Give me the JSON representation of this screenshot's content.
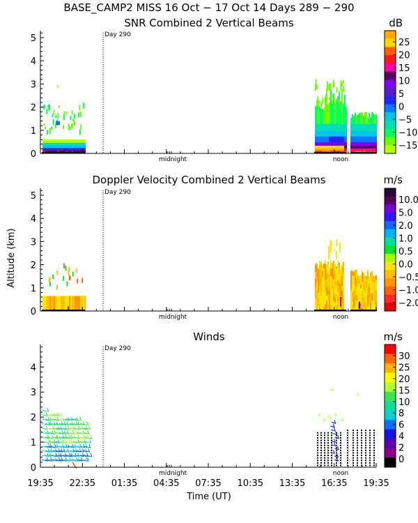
{
  "figure": {
    "title": "BASE_CAMP2 MISS  16 Oct − 17 Oct 14 Days 289 − 290",
    "ylabel": "Altitude (km)",
    "xlabel": "Time (UT)",
    "x_ticks": [
      "19:35",
      "22:35",
      "01:35",
      "04:35",
      "07:35",
      "10:35",
      "13:35",
      "16:35",
      "19:35"
    ],
    "day_marker": "Day 290",
    "midnight_label": "midnight",
    "noon_label": "noon"
  },
  "chart_data": [
    {
      "type": "heatmap",
      "title": "SNR Combined 2 Vertical Beams",
      "units": "dB",
      "ylim": [
        0,
        5.3
      ],
      "y_ticks": [
        "0",
        "1",
        "2",
        "3",
        "4",
        "5"
      ],
      "colorbar_labels": [
        "25",
        "20",
        "15",
        "10",
        "5",
        "0",
        "−5",
        "−10",
        "−15"
      ],
      "colorbar_colors": [
        "#ffa800",
        "#ffd800",
        "#ff6000",
        "#ff1818",
        "#ff00aa",
        "#5a005a",
        "#8000ff",
        "#5a1ec8",
        "#1c28ff",
        "#0a78ff",
        "#00c8e6",
        "#00e0b4",
        "#00ff60",
        "#6cff00",
        "#b4ff00"
      ],
      "data_coverage": [
        {
          "period": "19:35-22:35",
          "max_altitude_km": 2.3,
          "dominant_values_db": [
            -15,
            -10
          ]
        },
        {
          "period": "15:00-19:00",
          "max_altitude_km": 3.2,
          "dominant_values_db": [
            -15,
            25
          ]
        }
      ]
    },
    {
      "type": "heatmap",
      "title": "Doppler Velocity Combined 2 Vertical Beams",
      "units": "m/s",
      "ylim": [
        0,
        5.3
      ],
      "y_ticks": [
        "0",
        "1",
        "2",
        "3",
        "4",
        "5"
      ],
      "colorbar_labels": [
        "10.0",
        "5.0",
        "2.0",
        "1.0",
        "0.5",
        "0.0",
        "−0.5",
        "−1.0",
        "−2.0"
      ],
      "colorbar_colors": [
        "#2a0a36",
        "#5a005a",
        "#7a00d8",
        "#3214ff",
        "#1464ff",
        "#00b4f0",
        "#00e0a0",
        "#00e632",
        "#a0ff00",
        "#ffe600",
        "#ffbe00",
        "#ff9600",
        "#ff6400",
        "#ff2828",
        "#e60000"
      ],
      "data_coverage": [
        {
          "period": "19:35-22:35",
          "max_altitude_km": 2.1,
          "dominant_values_ms": [
            -0.5,
            0.0
          ]
        },
        {
          "period": "15:00-19:00",
          "max_altitude_km": 3.0,
          "dominant_values_ms": [
            -0.5,
            0.0
          ]
        }
      ]
    },
    {
      "type": "scatter",
      "title": "Winds",
      "units": "m/s",
      "ylim": [
        0,
        4.9
      ],
      "y_ticks": [
        "0",
        "1",
        "2",
        "3",
        "4"
      ],
      "colorbar_labels": [
        "30",
        "25",
        "20",
        "15",
        "10",
        "8",
        "6",
        "4",
        "2",
        "0"
      ],
      "colorbar_colors": [
        "#ff0000",
        "#ff6400",
        "#ffb400",
        "#ffff00",
        "#b4ff32",
        "#3ce650",
        "#14dc96",
        "#00d2d2",
        "#0a6eff",
        "#1414e6",
        "#5a00b4",
        "#8c008c",
        "#000000"
      ],
      "data_coverage": [
        {
          "period": "19:35-22:35",
          "max_altitude_km": 2.4,
          "speed_range_ms": [
            4,
            15
          ]
        },
        {
          "period": "15:00-19:00",
          "max_altitude_km": 3.3,
          "speed_range_ms": [
            0,
            15
          ]
        }
      ]
    }
  ]
}
